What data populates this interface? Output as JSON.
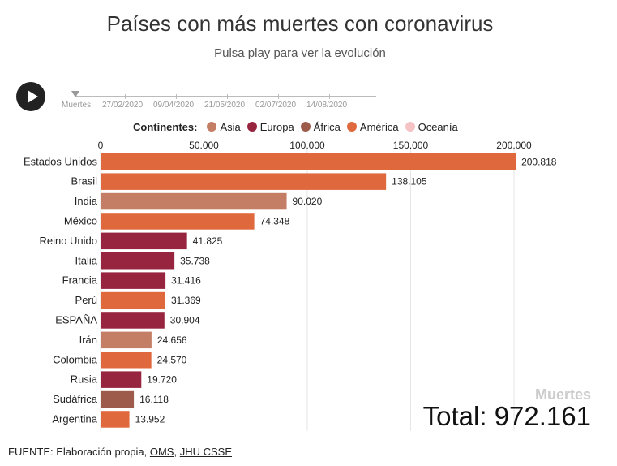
{
  "title": "Países con más muertes con coronavirus",
  "subtitle": "Pulsa play para ver la evolución",
  "timeline": {
    "label": "Muertes",
    "dates": [
      "27/02/2020",
      "09/04/2020",
      "21/05/2020",
      "02/07/2020",
      "14/08/2020"
    ]
  },
  "legend": {
    "title": "Continentes:",
    "items": [
      {
        "name": "Asia",
        "color": "#c47e66"
      },
      {
        "name": "Europa",
        "color": "#97253f"
      },
      {
        "name": "África",
        "color": "#9d5b4c"
      },
      {
        "name": "América",
        "color": "#e0683d"
      },
      {
        "name": "Oceanía",
        "color": "#f5c3c3"
      }
    ]
  },
  "total": {
    "label": "Muertes",
    "text": "Total: 972.161"
  },
  "footer": {
    "prefix": "FUENTE: Elaboración propia, ",
    "link1": "OMS",
    "sep": ", ",
    "link2": "JHU CSSE"
  },
  "chart_data": {
    "type": "bar",
    "orientation": "horizontal",
    "xlim": [
      0,
      200000
    ],
    "xticks": [
      0,
      50000,
      100000,
      150000,
      200000
    ],
    "xtick_labels": [
      "0",
      "50.000",
      "100.000",
      "150.000",
      "200.000"
    ],
    "grid": true,
    "categories": [
      "Estados Unidos",
      "Brasil",
      "India",
      "México",
      "Reino Unido",
      "Italia",
      "Francia",
      "Perú",
      "ESPAÑA",
      "Irán",
      "Colombia",
      "Rusia",
      "Sudáfrica",
      "Argentina"
    ],
    "values": [
      200818,
      138105,
      90020,
      74348,
      41825,
      35738,
      31416,
      31369,
      30904,
      24656,
      24570,
      19720,
      16118,
      13952
    ],
    "value_labels": [
      "200.818",
      "138.105",
      "90.020",
      "74.348",
      "41.825",
      "35.738",
      "31.416",
      "31.369",
      "30.904",
      "24.656",
      "24.570",
      "19.720",
      "16.118",
      "13.952"
    ],
    "continents": [
      "América",
      "América",
      "Asia",
      "América",
      "Europa",
      "Europa",
      "Europa",
      "América",
      "Europa",
      "Asia",
      "América",
      "Europa",
      "África",
      "América"
    ],
    "colors": {
      "Asia": "#c47e66",
      "Europa": "#97253f",
      "África": "#9d5b4c",
      "América": "#e0683d",
      "Oceanía": "#f5c3c3"
    }
  }
}
